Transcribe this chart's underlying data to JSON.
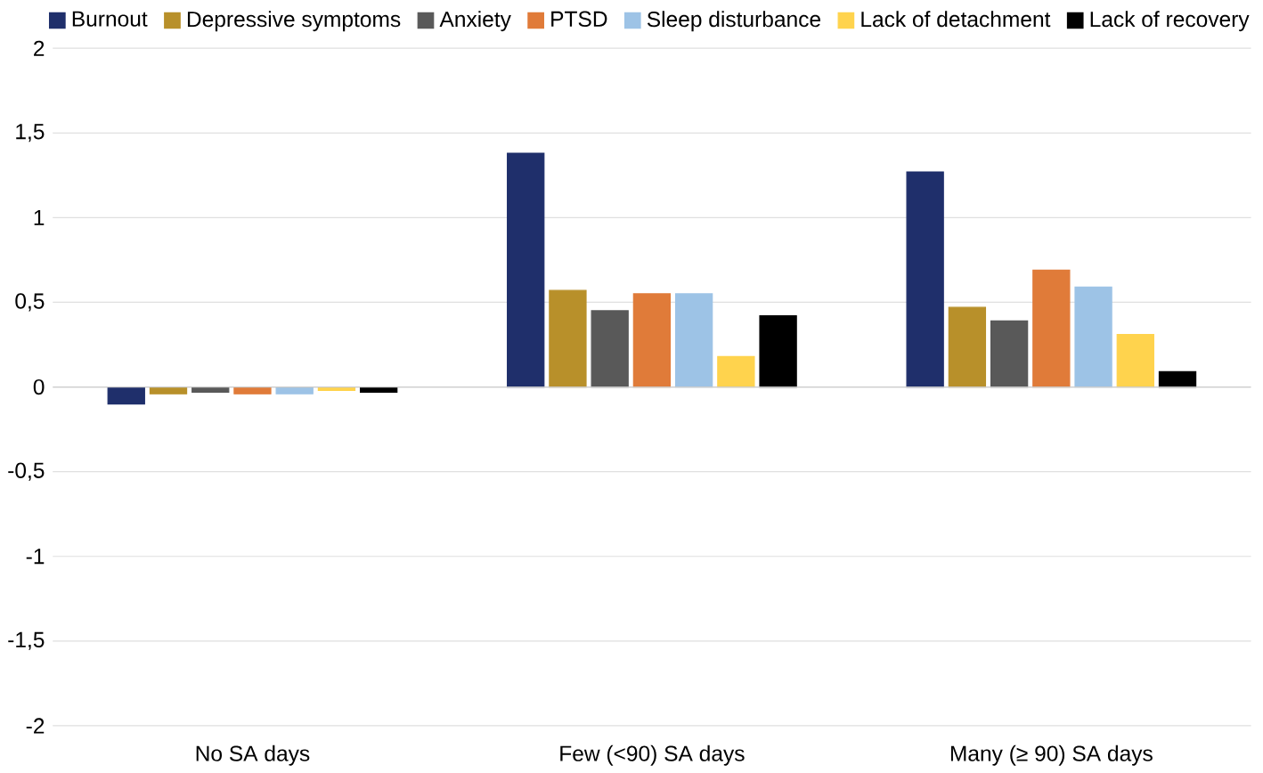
{
  "chart_data": {
    "type": "bar",
    "categories": [
      "No SA days",
      "Few (<90) SA days",
      "Many (≥ 90) SA days"
    ],
    "series": [
      {
        "name": "Burnout",
        "color": "#1f2f6b",
        "values": [
          -0.1,
          1.38,
          1.27
        ]
      },
      {
        "name": "Depressive symptoms",
        "color": "#b8902a",
        "values": [
          -0.04,
          0.57,
          0.47
        ]
      },
      {
        "name": "Anxiety",
        "color": "#595959",
        "values": [
          -0.03,
          0.45,
          0.39
        ]
      },
      {
        "name": "PTSD",
        "color": "#e07b39",
        "values": [
          -0.04,
          0.55,
          0.69
        ]
      },
      {
        "name": "Sleep disturbance",
        "color": "#9dc3e6",
        "values": [
          -0.04,
          0.55,
          0.59
        ]
      },
      {
        "name": "Lack of detachment",
        "color": "#ffd34d",
        "values": [
          -0.02,
          0.18,
          0.31
        ]
      },
      {
        "name": "Lack of recovery",
        "color": "#000000",
        "values": [
          -0.03,
          0.42,
          0.09
        ]
      }
    ],
    "ylim": [
      -2,
      2
    ],
    "yticks": [
      {
        "value": -2,
        "label": "-2"
      },
      {
        "value": -1.5,
        "label": "-1,5"
      },
      {
        "value": -1,
        "label": "-1"
      },
      {
        "value": -0.5,
        "label": "-0,5"
      },
      {
        "value": 0,
        "label": "0"
      },
      {
        "value": 0.5,
        "label": "0,5"
      },
      {
        "value": 1,
        "label": "1"
      },
      {
        "value": 1.5,
        "label": "1,5"
      },
      {
        "value": 2,
        "label": "2"
      }
    ],
    "grid": "y",
    "legend": "top"
  }
}
